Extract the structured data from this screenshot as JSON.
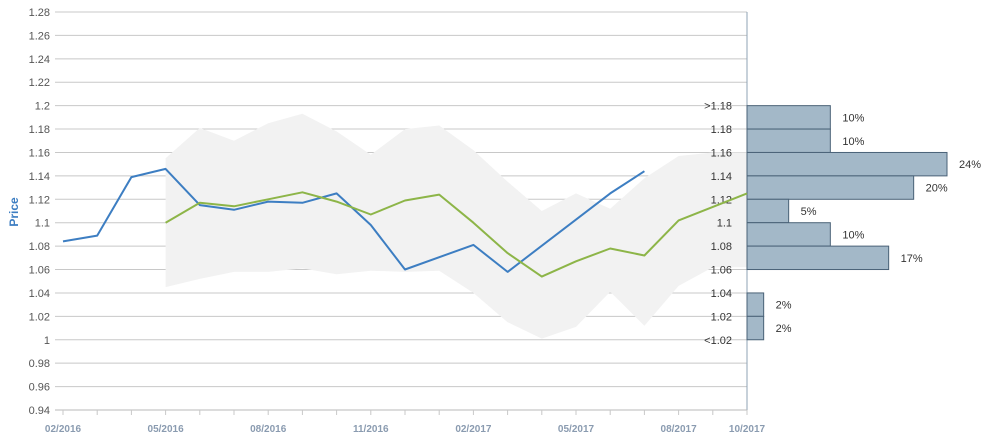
{
  "chart_data": {
    "type": "line",
    "ylabel": "Price",
    "xlabel": "",
    "ylim": [
      0.94,
      1.28
    ],
    "yticks": [
      "0.94",
      "0.96",
      "0.98",
      "1",
      "1.02",
      "1.04",
      "1.06",
      "1.08",
      "1.1",
      "1.12",
      "1.14",
      "1.16",
      "1.18",
      "1.2",
      "1.22",
      "1.24",
      "1.26",
      "1.28"
    ],
    "x_tick_labels": [
      "02/2016",
      "05/2016",
      "08/2016",
      "11/2016",
      "02/2017",
      "05/2017",
      "08/2017",
      "10/2017"
    ],
    "x_tick_dates": [
      "2016-02",
      "2016-05",
      "2016-08",
      "2016-11",
      "2017-02",
      "2017-05",
      "2017-08",
      "2017-10"
    ],
    "grid": true,
    "series": [
      {
        "color": "#3d7ec2",
        "points": [
          [
            "2016-02",
            1.084
          ],
          [
            "2016-03",
            1.089
          ],
          [
            "2016-04",
            1.139
          ],
          [
            "2016-05",
            1.146
          ],
          [
            "2016-06",
            1.115
          ],
          [
            "2016-07",
            1.111
          ],
          [
            "2016-08",
            1.118
          ],
          [
            "2016-09",
            1.117
          ],
          [
            "2016-10",
            1.125
          ],
          [
            "2016-11",
            1.098
          ],
          [
            "2016-12",
            1.06
          ],
          [
            "2017-02",
            1.081
          ],
          [
            "2017-03",
            1.058
          ],
          [
            "2017-06",
            1.125
          ],
          [
            "2017-07",
            1.144
          ]
        ]
      },
      {
        "color": "#8db548",
        "points": [
          [
            "2016-05",
            1.1
          ],
          [
            "2016-06",
            1.117
          ],
          [
            "2016-07",
            1.114
          ],
          [
            "2016-08",
            1.12
          ],
          [
            "2016-09",
            1.126
          ],
          [
            "2016-10",
            1.118
          ],
          [
            "2016-11",
            1.107
          ],
          [
            "2016-12",
            1.119
          ],
          [
            "2017-01",
            1.124
          ],
          [
            "2017-02",
            1.1
          ],
          [
            "2017-03",
            1.074
          ],
          [
            "2017-04",
            1.054
          ],
          [
            "2017-05",
            1.067
          ],
          [
            "2017-06",
            1.078
          ],
          [
            "2017-07",
            1.072
          ],
          [
            "2017-08",
            1.102
          ],
          [
            "2017-10",
            1.125
          ]
        ]
      }
    ],
    "band": {
      "color": "#f2f2f2",
      "upper": [
        [
          "2016-05",
          1.155
        ],
        [
          "2016-06",
          1.181
        ],
        [
          "2016-07",
          1.17
        ],
        [
          "2016-08",
          1.185
        ],
        [
          "2016-09",
          1.193
        ],
        [
          "2016-10",
          1.178
        ],
        [
          "2016-11",
          1.158
        ],
        [
          "2016-12",
          1.18
        ],
        [
          "2017-01",
          1.183
        ],
        [
          "2017-02",
          1.162
        ],
        [
          "2017-03",
          1.135
        ],
        [
          "2017-04",
          1.11
        ],
        [
          "2017-05",
          1.125
        ],
        [
          "2017-06",
          1.112
        ],
        [
          "2017-07",
          1.138
        ],
        [
          "2017-08",
          1.157
        ],
        [
          "2017-09",
          1.16
        ],
        [
          "2017-10",
          1.16
        ]
      ],
      "lower": [
        [
          "2016-05",
          1.045
        ],
        [
          "2016-06",
          1.052
        ],
        [
          "2016-07",
          1.058
        ],
        [
          "2016-08",
          1.058
        ],
        [
          "2016-09",
          1.061
        ],
        [
          "2016-10",
          1.056
        ],
        [
          "2016-11",
          1.059
        ],
        [
          "2016-12",
          1.058
        ],
        [
          "2017-01",
          1.059
        ],
        [
          "2017-02",
          1.04
        ],
        [
          "2017-03",
          1.015
        ],
        [
          "2017-04",
          1.001
        ],
        [
          "2017-05",
          1.011
        ],
        [
          "2017-06",
          1.041
        ],
        [
          "2017-07",
          1.012
        ],
        [
          "2017-08",
          1.046
        ],
        [
          "2017-09",
          1.062
        ],
        [
          "2017-10",
          1.062
        ]
      ]
    },
    "histogram": {
      "color": "#a3b8c8",
      "border": "#4a6277",
      "bins": [
        {
          "label": ">1.18",
          "lower": 1.18,
          "upper": 1.2,
          "percent": 10,
          "percent_label": "10%"
        },
        {
          "label": "1.18",
          "lower": 1.16,
          "upper": 1.18,
          "percent": 10,
          "percent_label": "10%"
        },
        {
          "label": "1.16",
          "lower": 1.14,
          "upper": 1.16,
          "percent": 24,
          "percent_label": "24%"
        },
        {
          "label": "1.14",
          "lower": 1.12,
          "upper": 1.14,
          "percent": 20,
          "percent_label": "20%"
        },
        {
          "label": "1.12",
          "lower": 1.1,
          "upper": 1.12,
          "percent": 5,
          "percent_label": "5%"
        },
        {
          "label": "1.1",
          "lower": 1.08,
          "upper": 1.1,
          "percent": 10,
          "percent_label": "10%"
        },
        {
          "label": "1.08",
          "lower": 1.06,
          "upper": 1.08,
          "percent": 17,
          "percent_label": "17%"
        },
        {
          "label": "1.06",
          "lower": 1.06,
          "upper": 1.06,
          "percent": 0,
          "percent_label": ""
        },
        {
          "label": "1.04",
          "lower": 1.02,
          "upper": 1.04,
          "percent": 2,
          "percent_label": "2%"
        },
        {
          "label": "1.02",
          "lower": 1.0,
          "upper": 1.02,
          "percent": 2,
          "percent_label": "2%"
        },
        {
          "label": "<1.02",
          "lower": 1.0,
          "upper": 1.0,
          "percent": 0,
          "percent_label": ""
        }
      ]
    }
  }
}
